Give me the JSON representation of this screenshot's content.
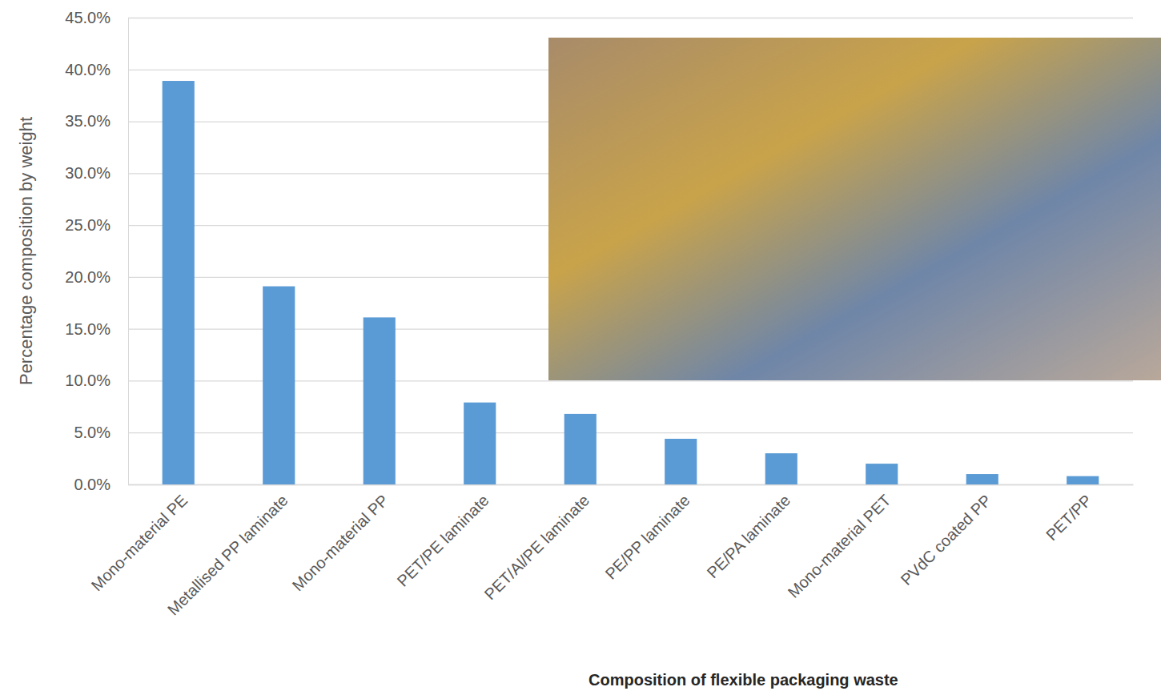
{
  "chart_data": {
    "type": "bar",
    "title": "Composition of flexible packaging waste",
    "y_label": "Percentage composition by weight",
    "categories": [
      "Mono-material PE",
      "Metallised PP laminate",
      "Mono-material PP",
      "PET/PE laminate",
      "PET/Al/PE laminate",
      "PE/PP laminate",
      "PE/PA laminate",
      "Mono-material PET",
      "PVdC coated PP",
      "PET/PP"
    ],
    "values": [
      38.9,
      19.1,
      16.1,
      7.9,
      6.8,
      4.4,
      3.0,
      2.0,
      1.0,
      0.8
    ],
    "color": "#5b9bd5",
    "ylim": [
      0,
      45
    ],
    "yticks": [
      {
        "value": 0,
        "label": "0.0%"
      },
      {
        "value": 5,
        "label": "5.0%"
      },
      {
        "value": 10,
        "label": "10.0%"
      },
      {
        "value": 15,
        "label": "15.0%"
      },
      {
        "value": 20,
        "label": "20.0%"
      },
      {
        "value": 25,
        "label": "25.0%"
      },
      {
        "value": 30,
        "label": "30.0%"
      },
      {
        "value": 35,
        "label": "35.0%"
      },
      {
        "value": 40,
        "label": "40.0%"
      },
      {
        "value": 45,
        "label": "45.0%"
      }
    ],
    "grid": true
  }
}
